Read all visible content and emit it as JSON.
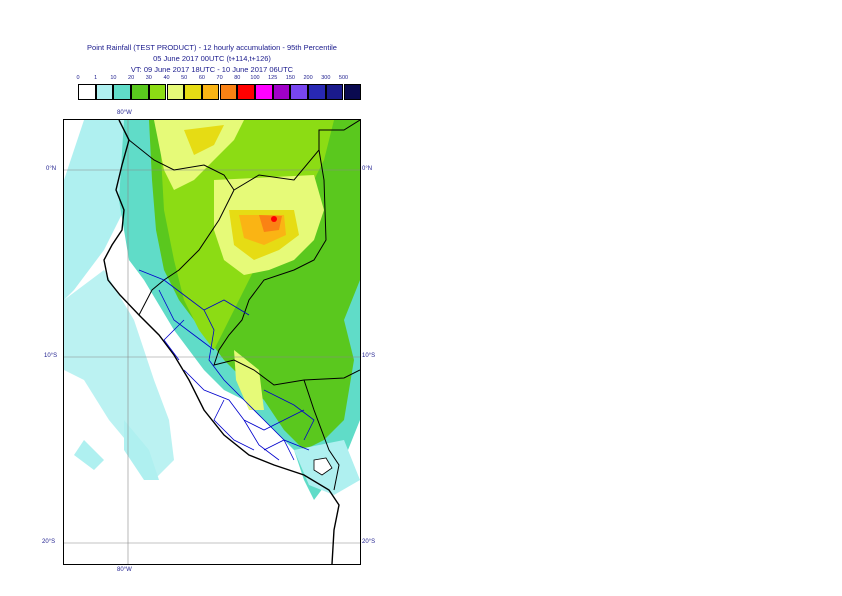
{
  "title": {
    "line1": "Point Rainfall (TEST PRODUCT) - 12 hourly accumulation - 95th Percentile",
    "line2": "05 June 2017 00UTC (t+114,t+126)",
    "line3": "VT: 09 June 2017 18UTC - 10 June 2017 06UTC"
  },
  "legend": {
    "thresholds": [
      "0",
      "1",
      "10",
      "20",
      "30",
      "40",
      "50",
      "60",
      "70",
      "80",
      "100",
      "125",
      "150",
      "200",
      "300",
      "500"
    ],
    "colors": [
      "#ffffff",
      "#aff0f0",
      "#60dcc8",
      "#5ac81e",
      "#8cdc14",
      "#e6fa78",
      "#e6dc14",
      "#fab414",
      "#fa8214",
      "#ff0000",
      "#ff00ff",
      "#a000c8",
      "#7846f0",
      "#2828b4",
      "#1a1a8c",
      "#0a0a50"
    ]
  },
  "map": {
    "lon_labels": {
      "top": "80°W",
      "bottom": "80°W"
    },
    "lat_labels": {
      "n0_left": "0°N",
      "n0_right": "0°N",
      "s10_left": "10°S",
      "s10_right": "10°S",
      "s20_left": "20°S",
      "s20_right": "20°S"
    },
    "colors": {
      "ocean_light": "#aff0f0",
      "teal": "#60dcc8",
      "green": "#5ac81e",
      "lime": "#8cdc14",
      "yellow": "#e6fa78",
      "gold": "#e6dc14",
      "orange": "#fab414",
      "dark_orange": "#fa8214",
      "red": "#ff0000",
      "border_black": "#000000",
      "border_blue": "#0000cd"
    }
  }
}
